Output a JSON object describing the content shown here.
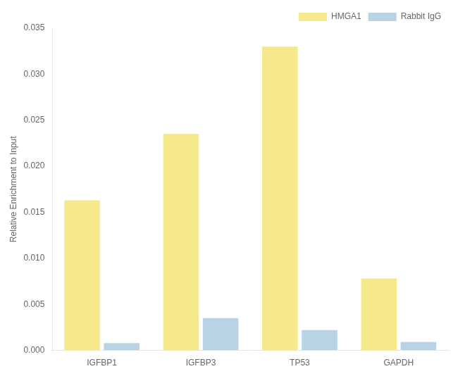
{
  "chart_data": {
    "type": "bar",
    "categories": [
      "IGFBP1",
      "IGFBP3",
      "TP53",
      "GAPDH"
    ],
    "series": [
      {
        "name": "HMGA1",
        "color": "#F5E98C",
        "values": [
          0.0163,
          0.0235,
          0.033,
          0.0078
        ]
      },
      {
        "name": "Rabbit IgG",
        "color": "#B8D4E4",
        "values": [
          0.0008,
          0.0035,
          0.0022,
          0.0009
        ]
      }
    ],
    "ylabel": "Relative Enrichment to Input",
    "ylim": [
      0,
      0.035
    ],
    "yticks": [
      {
        "value": 0.0,
        "label": "0.000"
      },
      {
        "value": 0.005,
        "label": "0.005"
      },
      {
        "value": 0.01,
        "label": "0.010"
      },
      {
        "value": 0.015,
        "label": "0.015"
      },
      {
        "value": 0.02,
        "label": "0.020"
      },
      {
        "value": 0.025,
        "label": "0.025"
      },
      {
        "value": 0.03,
        "label": "0.030"
      },
      {
        "value": 0.035,
        "label": "0.035"
      }
    ],
    "grid": false,
    "legend": "upper right"
  }
}
